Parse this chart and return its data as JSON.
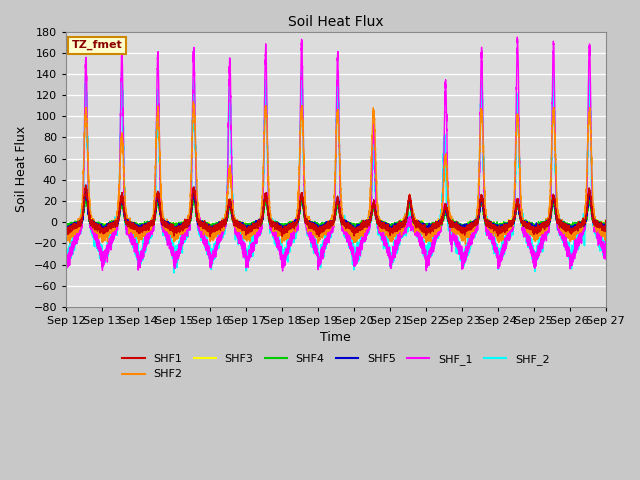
{
  "title": "Soil Heat Flux",
  "xlabel": "Time",
  "ylabel": "Soil Heat Flux",
  "ylim": [
    -80,
    180
  ],
  "background_color": "#c8c8c8",
  "plot_bg_color": "#dcdcdc",
  "grid_color": "#ffffff",
  "series_order": [
    "SHF_2",
    "SHF_1",
    "SHF2",
    "SHF3",
    "SHF4",
    "SHF5",
    "SHF1"
  ],
  "series": {
    "SHF1": {
      "color": "#cc0000",
      "lw": 1.0
    },
    "SHF2": {
      "color": "#ff8800",
      "lw": 1.0
    },
    "SHF3": {
      "color": "#ffff00",
      "lw": 1.0
    },
    "SHF4": {
      "color": "#00cc00",
      "lw": 1.0
    },
    "SHF5": {
      "color": "#0000cc",
      "lw": 1.0
    },
    "SHF_1": {
      "color": "#ff00ff",
      "lw": 1.0
    },
    "SHF_2": {
      "color": "#00ffff",
      "lw": 1.2
    }
  },
  "legend_label": "TZ_fmet",
  "legend_bg": "#ffffcc",
  "legend_border": "#cc8800",
  "n_days": 15,
  "tick_labels": [
    "Sep 12",
    "Sep 13",
    "Sep 14",
    "Sep 15",
    "Sep 16",
    "Sep 17",
    "Sep 18",
    "Sep 19",
    "Sep 20",
    "Sep 21",
    "Sep 22",
    "Sep 23",
    "Sep 24",
    "Sep 25",
    "Sep 26",
    "Sep 27"
  ],
  "yticks": [
    -80,
    -60,
    -40,
    -20,
    0,
    20,
    40,
    60,
    80,
    100,
    120,
    140,
    160,
    180
  ],
  "legend_entries": [
    "SHF1",
    "SHF2",
    "SHF3",
    "SHF4",
    "SHF5",
    "SHF_1",
    "SHF_2"
  ]
}
